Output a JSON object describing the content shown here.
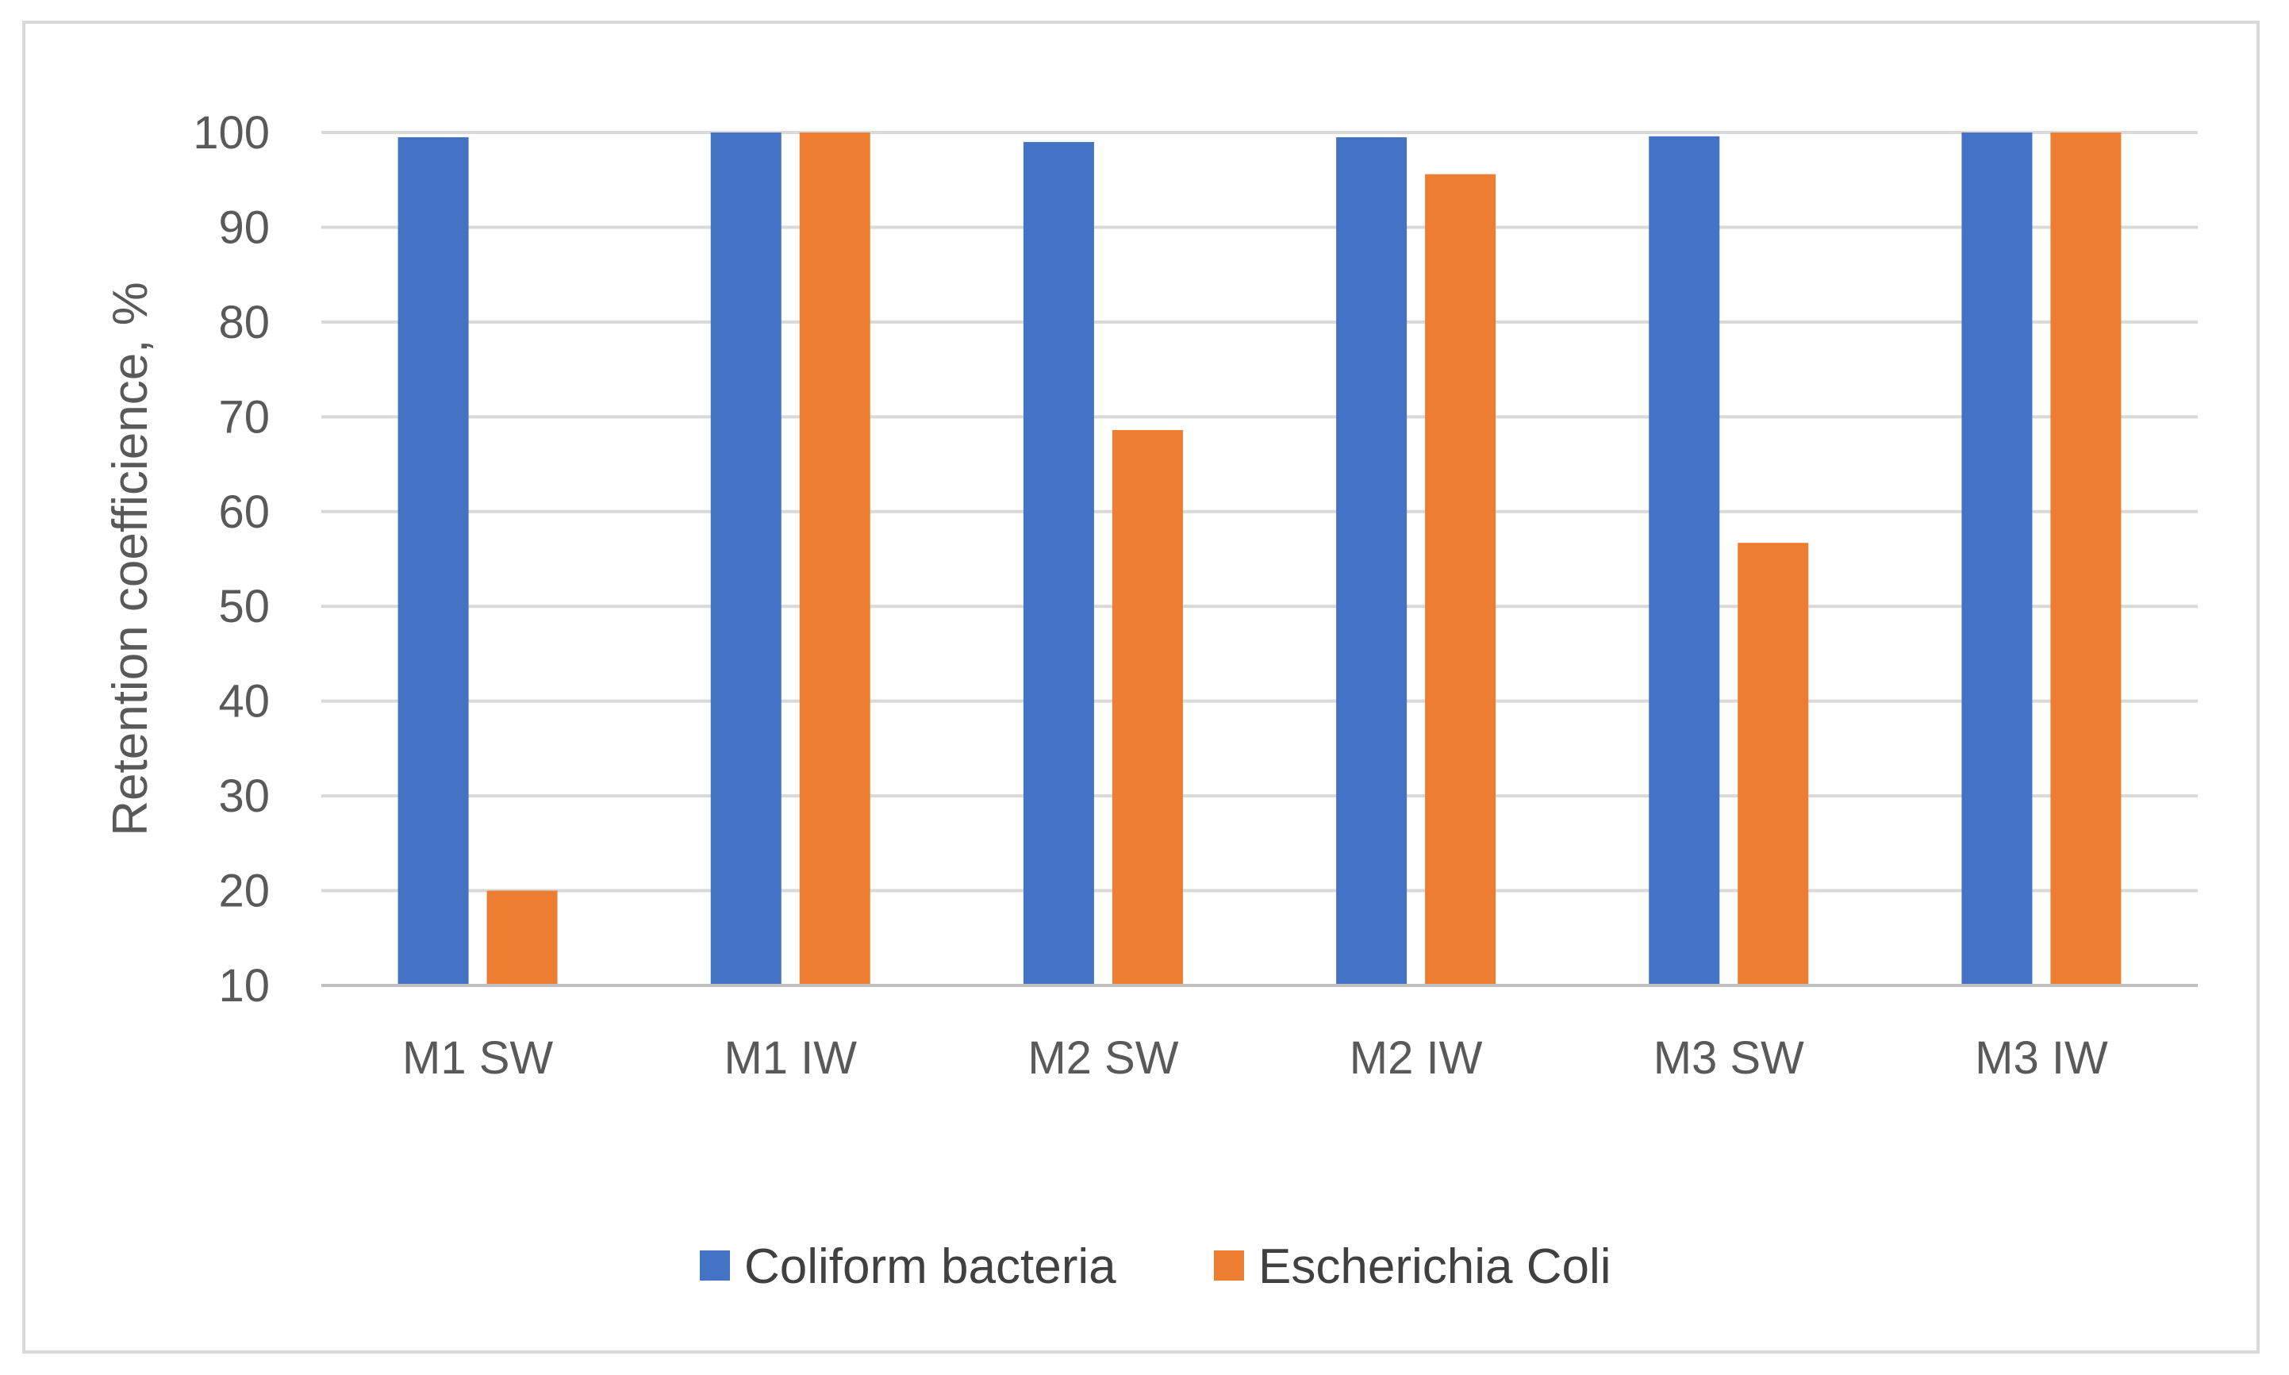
{
  "chart_data": {
    "type": "bar",
    "title": "",
    "xlabel": "",
    "ylabel": "Retention coefficience, %",
    "ylim": [
      10,
      100
    ],
    "yticks": [
      10,
      20,
      30,
      40,
      50,
      60,
      70,
      80,
      90,
      100
    ],
    "grid": true,
    "legend_position": "bottom",
    "categories": [
      "M1 SW",
      "M1 IW",
      "M2 SW",
      "M2 IW",
      "M3 SW",
      "M3 IW"
    ],
    "series": [
      {
        "name": "Coliform bacteria",
        "color": "#4472c4",
        "values": [
          99.5,
          100,
          99,
          99.5,
          99.6,
          100
        ]
      },
      {
        "name": "Escherichia Coli",
        "color": "#ed7d31",
        "values": [
          20,
          100,
          68.6,
          95.6,
          56.7,
          100
        ]
      }
    ]
  }
}
